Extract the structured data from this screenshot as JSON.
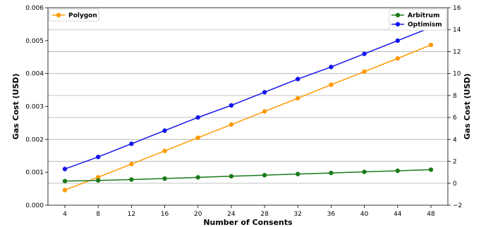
{
  "chart_data": {
    "type": "line",
    "xlabel": "Number of Consents",
    "ylabel_left": "Gas Cost (USD)",
    "ylabel_right": "Gas Cost (USD)",
    "x": [
      4,
      8,
      12,
      16,
      20,
      24,
      28,
      32,
      36,
      40,
      44,
      48
    ],
    "x_ticks": [
      "4",
      "8",
      "12",
      "16",
      "20",
      "24",
      "28",
      "32",
      "36",
      "40",
      "44",
      "48"
    ],
    "ylim_left": [
      0,
      0.006
    ],
    "y_ticks_left": [
      "0.000",
      "0.001",
      "0.002",
      "0.003",
      "0.004",
      "0.005",
      "0.006"
    ],
    "ylim_right": [
      -2,
      16
    ],
    "y_ticks_right": [
      "−2",
      "0",
      "2",
      "4",
      "6",
      "8",
      "10",
      "12",
      "14",
      "16"
    ],
    "grid": "horizontal",
    "series": [
      {
        "name": "Polygon",
        "axis": "left",
        "color": "#ff9900",
        "values": [
          0.00046,
          0.00085,
          0.00125,
          0.00165,
          0.00205,
          0.00245,
          0.00285,
          0.00325,
          0.00366,
          0.00406,
          0.00446,
          0.00487
        ]
      },
      {
        "name": "Arbitrum",
        "axis": "right",
        "color": "#1a7a1a",
        "values": [
          0.2,
          0.26,
          0.34,
          0.43,
          0.54,
          0.64,
          0.74,
          0.84,
          0.94,
          1.04,
          1.14,
          1.24
        ]
      },
      {
        "name": "Optimism",
        "axis": "right",
        "color": "#1414ee",
        "values": [
          1.3,
          2.4,
          3.6,
          4.8,
          6.0,
          7.1,
          8.3,
          9.5,
          10.6,
          11.8,
          13.0,
          14.2
        ]
      }
    ],
    "legend_left": {
      "placement": "top-left",
      "series": [
        "Polygon"
      ]
    },
    "legend_right": {
      "placement": "top-right",
      "series": [
        "Arbitrum",
        "Optimism"
      ]
    }
  }
}
